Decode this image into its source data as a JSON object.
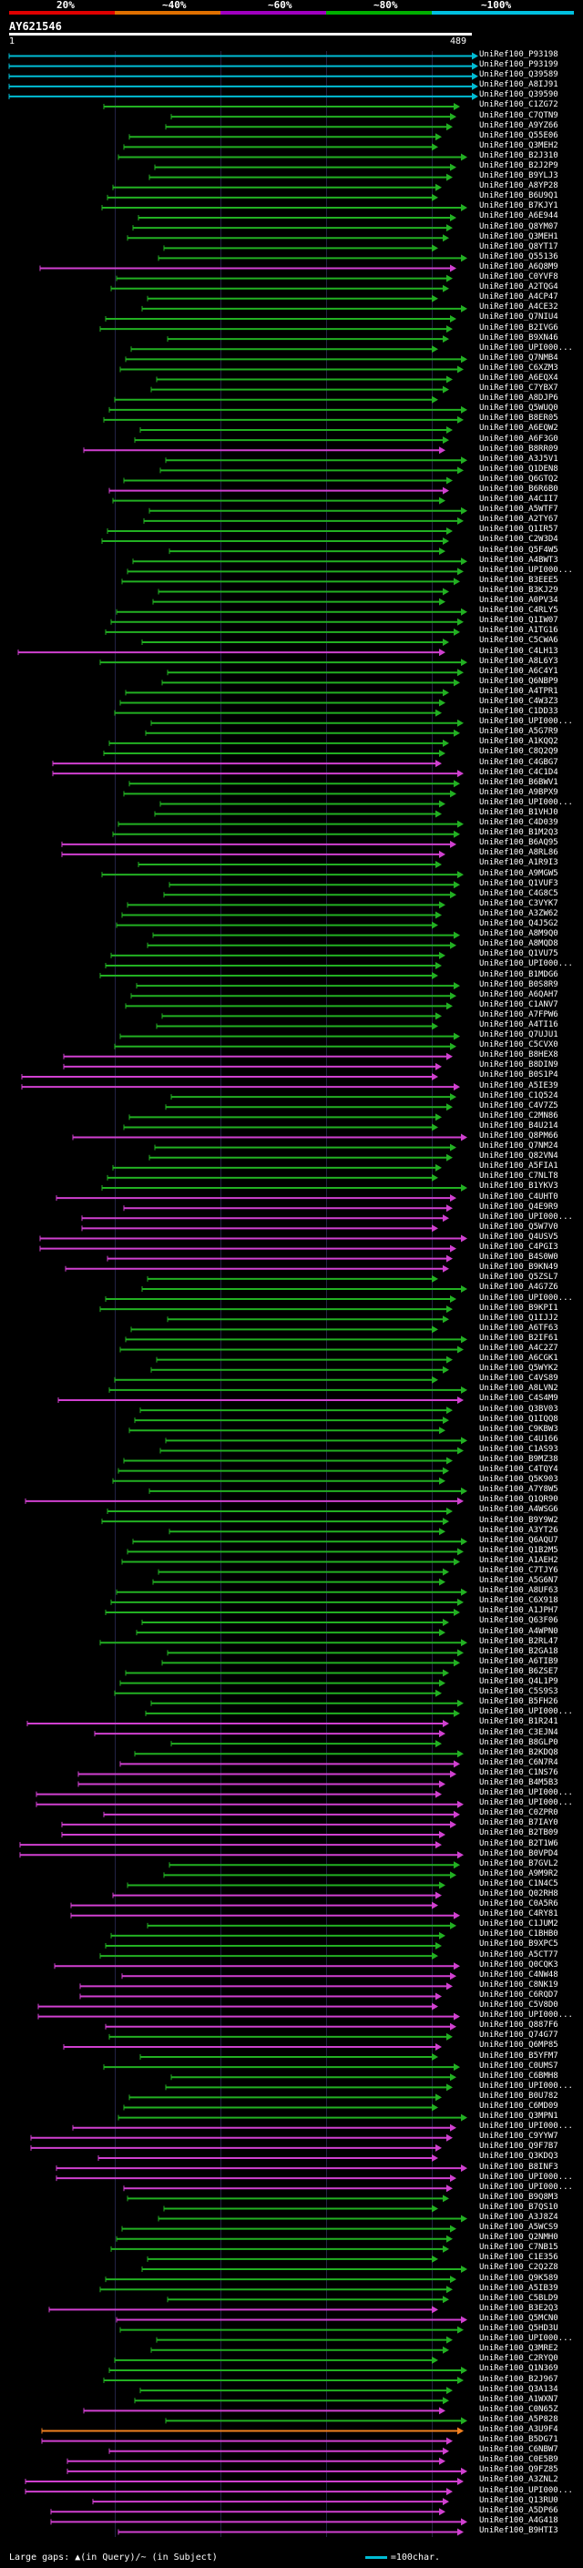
{
  "header": {
    "scale_labels": [
      "20%",
      "~40%",
      "~60%",
      "~80%",
      "~100%"
    ],
    "scale_colors": [
      "#e00000",
      "#e07000",
      "#a000c0",
      "#00b000",
      "#00c0e0"
    ],
    "query_name": "AY621546",
    "ruler_start": "1",
    "ruler_end": "489"
  },
  "legend": {
    "gaps_text": "Large gaps: ▲(in Query)/~ (in Subject)",
    "unit_text": "=100char."
  },
  "colors": {
    "cyan": "#00bcd4",
    "green": "#22b022",
    "magenta": "#d040d0",
    "orange": "#f08020"
  },
  "hits": [
    {
      "label": "UniRef100_P93198",
      "color": "cyan"
    },
    {
      "label": "UniRef100_P93199",
      "color": "cyan"
    },
    {
      "label": "UniRef100_Q39589",
      "color": "cyan"
    },
    {
      "label": "UniRef100_A8IJ91",
      "color": "cyan"
    },
    {
      "label": "UniRef100_Q39590",
      "color": "cyan"
    },
    {
      "label": "UniRef100_C1ZG72",
      "color": "green"
    },
    {
      "label": "UniRef100_C7QTN9",
      "color": "green"
    },
    {
      "label": "UniRef100_A9YZ66",
      "color": "green"
    },
    {
      "label": "UniRef100_Q55E06",
      "color": "green"
    },
    {
      "label": "UniRef100_Q3MEH2",
      "color": "green"
    },
    {
      "label": "UniRef100_B2J310",
      "color": "green"
    },
    {
      "label": "UniRef100_B2J2P9",
      "color": "green"
    },
    {
      "label": "UniRef100_B9YLJ3",
      "color": "green"
    },
    {
      "label": "UniRef100_A8YP28",
      "color": "green"
    },
    {
      "label": "UniRef100_B6U9Q1",
      "color": "green"
    },
    {
      "label": "UniRef100_B7KJY1",
      "color": "green"
    },
    {
      "label": "UniRef100_A6E944",
      "color": "green"
    },
    {
      "label": "UniRef100_Q8YM07",
      "color": "green"
    },
    {
      "label": "UniRef100_Q3MEH1",
      "color": "green"
    },
    {
      "label": "UniRef100_Q8YT17",
      "color": "green"
    },
    {
      "label": "UniRef100_Q55136",
      "color": "green"
    },
    {
      "label": "UniRef100_A6Q8M9",
      "color": "magenta"
    },
    {
      "label": "UniRef100_C0YVF8",
      "color": "green"
    },
    {
      "label": "UniRef100_A2TQG4",
      "color": "green"
    },
    {
      "label": "UniRef100_A4CP47",
      "color": "green"
    },
    {
      "label": "UniRef100_A4CE32",
      "color": "green"
    },
    {
      "label": "UniRef100_Q7NIU4",
      "color": "green"
    },
    {
      "label": "UniRef100_B2IVG6",
      "color": "green"
    },
    {
      "label": "UniRef100_B9XN46",
      "color": "green"
    },
    {
      "label": "UniRef100_UPI000...",
      "color": "green"
    },
    {
      "label": "UniRef100_Q7NMB4",
      "color": "green"
    },
    {
      "label": "UniRef100_C6XZM3",
      "color": "green"
    },
    {
      "label": "UniRef100_A6EQX4",
      "color": "green"
    },
    {
      "label": "UniRef100_C7YBX7",
      "color": "green"
    },
    {
      "label": "UniRef100_A8DJP6",
      "color": "green"
    },
    {
      "label": "UniRef100_Q5WUQ0",
      "color": "green"
    },
    {
      "label": "UniRef100_B8ER05",
      "color": "green"
    },
    {
      "label": "UniRef100_A6EQW2",
      "color": "green"
    },
    {
      "label": "UniRef100_A6F3G0",
      "color": "green"
    },
    {
      "label": "UniRef100_B8RR09",
      "color": "magenta"
    },
    {
      "label": "UniRef100_A3J5V1",
      "color": "green"
    },
    {
      "label": "UniRef100_Q1DEN8",
      "color": "green"
    },
    {
      "label": "UniRef100_Q6GTQ2",
      "color": "green"
    },
    {
      "label": "UniRef100_B6R6B0",
      "color": "magenta"
    },
    {
      "label": "UniRef100_A4CII7",
      "color": "green"
    },
    {
      "label": "UniRef100_A5WTF7",
      "color": "green"
    },
    {
      "label": "UniRef100_A2TY67",
      "color": "green"
    },
    {
      "label": "UniRef100_Q1IR57",
      "color": "green"
    },
    {
      "label": "UniRef100_C2W3D4",
      "color": "green"
    },
    {
      "label": "UniRef100_Q5F4W5",
      "color": "green"
    },
    {
      "label": "UniRef100_A4BWT3",
      "color": "green"
    },
    {
      "label": "UniRef100_UPI000...",
      "color": "green"
    },
    {
      "label": "UniRef100_B3EEE5",
      "color": "green"
    },
    {
      "label": "UniRef100_B3KJ29",
      "color": "green"
    },
    {
      "label": "UniRef100_A0PV34",
      "color": "green"
    },
    {
      "label": "UniRef100_C4RLY5",
      "color": "green"
    },
    {
      "label": "UniRef100_Q1IW07",
      "color": "green"
    },
    {
      "label": "UniRef100_A1TG16",
      "color": "green"
    },
    {
      "label": "UniRef100_C5CWA6",
      "color": "green"
    },
    {
      "label": "UniRef100_C4LH13",
      "color": "magenta"
    },
    {
      "label": "UniRef100_A8L6Y3",
      "color": "green"
    },
    {
      "label": "UniRef100_A6C4Y1",
      "color": "green"
    },
    {
      "label": "UniRef100_Q6NBP9",
      "color": "green"
    },
    {
      "label": "UniRef100_A4TPR1",
      "color": "green"
    },
    {
      "label": "UniRef100_C4W3Z3",
      "color": "green"
    },
    {
      "label": "UniRef100_C1DD33",
      "color": "green"
    },
    {
      "label": "UniRef100_UPI000...",
      "color": "green"
    },
    {
      "label": "UniRef100_A5G7R9",
      "color": "green"
    },
    {
      "label": "UniRef100_A1KQQ2",
      "color": "green"
    },
    {
      "label": "UniRef100_C8Q2Q9",
      "color": "green"
    },
    {
      "label": "UniRef100_C4GBG7",
      "color": "magenta"
    },
    {
      "label": "UniRef100_C4C1D4",
      "color": "magenta"
    },
    {
      "label": "UniRef100_B6BWV1",
      "color": "green"
    },
    {
      "label": "UniRef100_A9BPX9",
      "color": "green"
    },
    {
      "label": "UniRef100_UPI000...",
      "color": "green"
    },
    {
      "label": "UniRef100_B1VHJ0",
      "color": "green"
    },
    {
      "label": "UniRef100_C4D039",
      "color": "green"
    },
    {
      "label": "UniRef100_B1M2Q3",
      "color": "green"
    },
    {
      "label": "UniRef100_B6AQ95",
      "color": "magenta"
    },
    {
      "label": "UniRef100_A8RL86",
      "color": "magenta"
    },
    {
      "label": "UniRef100_A1R9I3",
      "color": "green"
    },
    {
      "label": "UniRef100_A9MGW5",
      "color": "green"
    },
    {
      "label": "UniRef100_Q1VUF3",
      "color": "green"
    },
    {
      "label": "UniRef100_C4G8C5",
      "color": "green"
    },
    {
      "label": "UniRef100_C3VYK7",
      "color": "green"
    },
    {
      "label": "UniRef100_A3ZW62",
      "color": "green"
    },
    {
      "label": "UniRef100_Q4J5G2",
      "color": "green"
    },
    {
      "label": "UniRef100_A8M9Q0",
      "color": "green"
    },
    {
      "label": "UniRef100_A8MQD8",
      "color": "green"
    },
    {
      "label": "UniRef100_Q1VU75",
      "color": "green"
    },
    {
      "label": "UniRef100_UPI000...",
      "color": "green"
    },
    {
      "label": "UniRef100_B1MDG6",
      "color": "green"
    },
    {
      "label": "UniRef100_B0S8R9",
      "color": "green"
    },
    {
      "label": "UniRef100_A6QAH7",
      "color": "green"
    },
    {
      "label": "UniRef100_C1ANV7",
      "color": "green"
    },
    {
      "label": "UniRef100_A7FPW6",
      "color": "green"
    },
    {
      "label": "UniRef100_A4TI16",
      "color": "green"
    },
    {
      "label": "UniRef100_Q7UJU1",
      "color": "green"
    },
    {
      "label": "UniRef100_C5CVX0",
      "color": "green"
    },
    {
      "label": "UniRef100_B8HEX8",
      "color": "magenta"
    },
    {
      "label": "UniRef100_B8DIN9",
      "color": "magenta"
    },
    {
      "label": "UniRef100_B0S1P4",
      "color": "magenta"
    },
    {
      "label": "UniRef100_A5IE39",
      "color": "magenta"
    },
    {
      "label": "UniRef100_C1Q524",
      "color": "green"
    },
    {
      "label": "UniRef100_C4V7Z5",
      "color": "green"
    },
    {
      "label": "UniRef100_C2MN86",
      "color": "green"
    },
    {
      "label": "UniRef100_B4U214",
      "color": "green"
    },
    {
      "label": "UniRef100_Q8PM66",
      "color": "magenta"
    },
    {
      "label": "UniRef100_Q7NM24",
      "color": "green"
    },
    {
      "label": "UniRef100_Q82VN4",
      "color": "green"
    },
    {
      "label": "UniRef100_A5FIA1",
      "color": "green"
    },
    {
      "label": "UniRef100_C7NLT8",
      "color": "green"
    },
    {
      "label": "UniRef100_B1YKV3",
      "color": "green"
    },
    {
      "label": "UniRef100_C4UHT0",
      "color": "magenta"
    },
    {
      "label": "UniRef100_Q4E9R9",
      "color": "magenta"
    },
    {
      "label": "UniRef100_UPI000...",
      "color": "magenta"
    },
    {
      "label": "UniRef100_Q5W7V0",
      "color": "magenta"
    },
    {
      "label": "UniRef100_Q4USV5",
      "color": "magenta"
    },
    {
      "label": "UniRef100_C4PGI3",
      "color": "magenta"
    },
    {
      "label": "UniRef100_B4S0W0",
      "color": "magenta"
    },
    {
      "label": "UniRef100_B9KN49",
      "color": "magenta"
    },
    {
      "label": "UniRef100_Q5ZSL7",
      "color": "green"
    },
    {
      "label": "UniRef100_A4G7Z6",
      "color": "green"
    },
    {
      "label": "UniRef100_UPI000...",
      "color": "green"
    },
    {
      "label": "UniRef100_B9KPI1",
      "color": "green"
    },
    {
      "label": "UniRef100_Q1IJJ2",
      "color": "green"
    },
    {
      "label": "UniRef100_A6TF63",
      "color": "green"
    },
    {
      "label": "UniRef100_B2IF61",
      "color": "green"
    },
    {
      "label": "UniRef100_A4C2Z7",
      "color": "green"
    },
    {
      "label": "UniRef100_A6CGK1",
      "color": "green"
    },
    {
      "label": "UniRef100_Q5WYK2",
      "color": "green"
    },
    {
      "label": "UniRef100_C4VS89",
      "color": "green"
    },
    {
      "label": "UniRef100_A8LVN2",
      "color": "green"
    },
    {
      "label": "UniRef100_C4S4M9",
      "color": "magenta"
    },
    {
      "label": "UniRef100_Q3BV03",
      "color": "green"
    },
    {
      "label": "UniRef100_Q1IQQ8",
      "color": "green"
    },
    {
      "label": "UniRef100_C9KBW3",
      "color": "green"
    },
    {
      "label": "UniRef100_C4U166",
      "color": "green"
    },
    {
      "label": "UniRef100_C1AS93",
      "color": "green"
    },
    {
      "label": "UniRef100_B9MZ38",
      "color": "green"
    },
    {
      "label": "UniRef100_C4TQY4",
      "color": "green"
    },
    {
      "label": "UniRef100_Q5K903",
      "color": "green"
    },
    {
      "label": "UniRef100_A7Y8W5",
      "color": "green"
    },
    {
      "label": "UniRef100_Q1QR90",
      "color": "magenta"
    },
    {
      "label": "UniRef100_A4WSG6",
      "color": "green"
    },
    {
      "label": "UniRef100_B9Y9W2",
      "color": "green"
    },
    {
      "label": "UniRef100_A3YT26",
      "color": "green"
    },
    {
      "label": "UniRef100_Q6AQU7",
      "color": "green"
    },
    {
      "label": "UniRef100_Q1B2M5",
      "color": "green"
    },
    {
      "label": "UniRef100_A1AEH2",
      "color": "green"
    },
    {
      "label": "UniRef100_C7TJY6",
      "color": "green"
    },
    {
      "label": "UniRef100_A5G6N7",
      "color": "green"
    },
    {
      "label": "UniRef100_A8UF63",
      "color": "green"
    },
    {
      "label": "UniRef100_C6X918",
      "color": "green"
    },
    {
      "label": "UniRef100_A1JPH7",
      "color": "green"
    },
    {
      "label": "UniRef100_Q63F06",
      "color": "green"
    },
    {
      "label": "UniRef100_A4WPN0",
      "color": "green"
    },
    {
      "label": "UniRef100_B2RL47",
      "color": "green"
    },
    {
      "label": "UniRef100_B2GA18",
      "color": "green"
    },
    {
      "label": "UniRef100_A6TIB9",
      "color": "green"
    },
    {
      "label": "UniRef100_B6ZSE7",
      "color": "green"
    },
    {
      "label": "UniRef100_Q4L1P9",
      "color": "green"
    },
    {
      "label": "UniRef100_C5S9S3",
      "color": "green"
    },
    {
      "label": "UniRef100_B5FH26",
      "color": "green"
    },
    {
      "label": "UniRef100_UPI000...",
      "color": "green"
    },
    {
      "label": "UniRef100_B1R241",
      "color": "magenta"
    },
    {
      "label": "UniRef100_C3EJN4",
      "color": "magenta"
    },
    {
      "label": "UniRef100_B8GLP0",
      "color": "green"
    },
    {
      "label": "UniRef100_B2KDQ8",
      "color": "green"
    },
    {
      "label": "UniRef100_C6N7R4",
      "color": "magenta"
    },
    {
      "label": "UniRef100_C1NS76",
      "color": "magenta"
    },
    {
      "label": "UniRef100_B4M5B3",
      "color": "magenta"
    },
    {
      "label": "UniRef100_UPI000...",
      "color": "magenta"
    },
    {
      "label": "UniRef100_UPI000...",
      "color": "magenta"
    },
    {
      "label": "UniRef100_C0ZPR0",
      "color": "magenta"
    },
    {
      "label": "UniRef100_B7IAY0",
      "color": "magenta"
    },
    {
      "label": "UniRef100_B2TB09",
      "color": "magenta"
    },
    {
      "label": "UniRef100_B2T1W6",
      "color": "magenta"
    },
    {
      "label": "UniRef100_B0VPD4",
      "color": "magenta"
    },
    {
      "label": "UniRef100_B7GVL2",
      "color": "green"
    },
    {
      "label": "UniRef100_A9M9R2",
      "color": "green"
    },
    {
      "label": "UniRef100_C1N4C5",
      "color": "green"
    },
    {
      "label": "UniRef100_Q02RH8",
      "color": "magenta"
    },
    {
      "label": "UniRef100_C0A5R6",
      "color": "magenta"
    },
    {
      "label": "UniRef100_C4RY81",
      "color": "magenta"
    },
    {
      "label": "UniRef100_C1JUM2",
      "color": "green"
    },
    {
      "label": "UniRef100_C1BHB0",
      "color": "green"
    },
    {
      "label": "UniRef100_B9XPC5",
      "color": "green"
    },
    {
      "label": "UniRef100_A5CT77",
      "color": "green"
    },
    {
      "label": "UniRef100_Q0CQK3",
      "color": "magenta"
    },
    {
      "label": "UniRef100_C4NW48",
      "color": "magenta"
    },
    {
      "label": "UniRef100_C8NK19",
      "color": "magenta"
    },
    {
      "label": "UniRef100_C6RQD7",
      "color": "magenta"
    },
    {
      "label": "UniRef100_C5V8D0",
      "color": "magenta"
    },
    {
      "label": "UniRef100_UPI000...",
      "color": "magenta"
    },
    {
      "label": "UniRef100_Q887F6",
      "color": "magenta"
    },
    {
      "label": "UniRef100_Q74G77",
      "color": "green"
    },
    {
      "label": "UniRef100_Q6MP85",
      "color": "magenta"
    },
    {
      "label": "UniRef100_B5YFM7",
      "color": "green"
    },
    {
      "label": "UniRef100_C0UMS7",
      "color": "green"
    },
    {
      "label": "UniRef100_C6BMH8",
      "color": "green"
    },
    {
      "label": "UniRef100_UPI000...",
      "color": "green"
    },
    {
      "label": "UniRef100_B0U782",
      "color": "green"
    },
    {
      "label": "UniRef100_C6MD09",
      "color": "green"
    },
    {
      "label": "UniRef100_Q3MPN1",
      "color": "green"
    },
    {
      "label": "UniRef100_UPI000...",
      "color": "magenta"
    },
    {
      "label": "UniRef100_C9YYW7",
      "color": "magenta"
    },
    {
      "label": "UniRef100_Q9F7B7",
      "color": "magenta"
    },
    {
      "label": "UniRef100_Q3KDQ3",
      "color": "magenta"
    },
    {
      "label": "UniRef100_B8INF3",
      "color": "magenta"
    },
    {
      "label": "UniRef100_UPI000...",
      "color": "magenta"
    },
    {
      "label": "UniRef100_UPI000...",
      "color": "magenta"
    },
    {
      "label": "UniRef100_B9Q8M3",
      "color": "green"
    },
    {
      "label": "UniRef100_B7QS10",
      "color": "green"
    },
    {
      "label": "UniRef100_A3J8Z4",
      "color": "green"
    },
    {
      "label": "UniRef100_A5WCS9",
      "color": "green"
    },
    {
      "label": "UniRef100_Q2NMH0",
      "color": "green"
    },
    {
      "label": "UniRef100_C7NB15",
      "color": "green"
    },
    {
      "label": "UniRef100_C1E356",
      "color": "green"
    },
    {
      "label": "UniRef100_C2Q2Z8",
      "color": "green"
    },
    {
      "label": "UniRef100_Q9K589",
      "color": "green"
    },
    {
      "label": "UniRef100_A5IB39",
      "color": "green"
    },
    {
      "label": "UniRef100_C5BLD9",
      "color": "green"
    },
    {
      "label": "UniRef100_B3E2Q3",
      "color": "magenta"
    },
    {
      "label": "UniRef100_Q5MCN0",
      "color": "magenta"
    },
    {
      "label": "UniRef100_Q5HD3U",
      "color": "green"
    },
    {
      "label": "UniRef100_UPI000...",
      "color": "green"
    },
    {
      "label": "UniRef100_Q3MRE2",
      "color": "green"
    },
    {
      "label": "UniRef100_C2RYQ0",
      "color": "green"
    },
    {
      "label": "UniRef100_Q1N369",
      "color": "green"
    },
    {
      "label": "UniRef100_B2J967",
      "color": "green"
    },
    {
      "label": "UniRef100_Q3A134",
      "color": "green"
    },
    {
      "label": "UniRef100_A1WXN7",
      "color": "green"
    },
    {
      "label": "UniRef100_C0N65Z",
      "color": "magenta"
    },
    {
      "label": "UniRef100_A5P828",
      "color": "green"
    },
    {
      "label": "UniRef100_A3U9F4",
      "color": "orange"
    },
    {
      "label": "UniRef100_B5DG71",
      "color": "magenta"
    },
    {
      "label": "UniRef100_C6NBW7",
      "color": "magenta"
    },
    {
      "label": "UniRef100_C0E5B9",
      "color": "magenta"
    },
    {
      "label": "UniRef100_Q9FZ85",
      "color": "magenta"
    },
    {
      "label": "UniRef100_A3ZNL2",
      "color": "magenta"
    },
    {
      "label": "UniRef100_UPI000...",
      "color": "magenta"
    },
    {
      "label": "UniRef100_Q13RU0",
      "color": "magenta"
    },
    {
      "label": "UniRef100_A5DP66",
      "color": "magenta"
    },
    {
      "label": "UniRef100_A4G418",
      "color": "magenta"
    },
    {
      "label": "UniRef100_B9HTI3",
      "color": "magenta"
    }
  ]
}
